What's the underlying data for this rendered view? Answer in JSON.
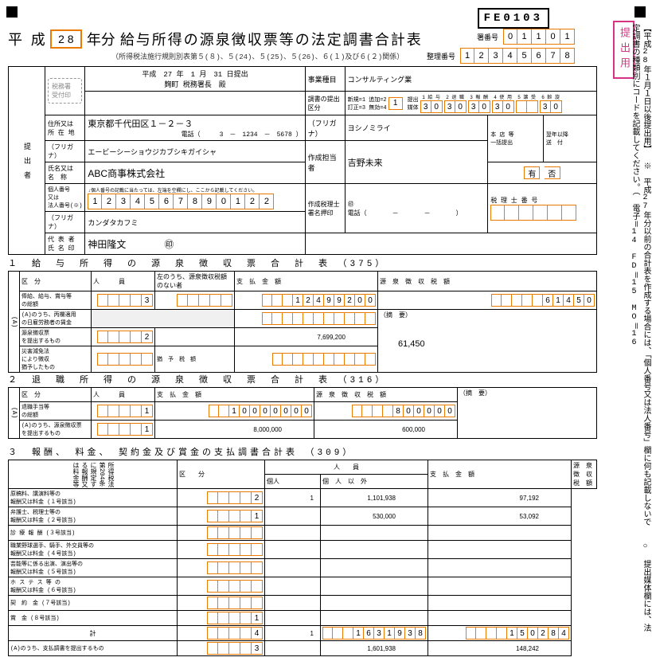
{
  "form_code": "FE0103",
  "era": "平 成",
  "year": "2 8",
  "year_suffix": "年分",
  "main_title": "給与所得の源泉徴収票等の法定調書合計表",
  "subtitle": "（所得税法施行規則別表第５(８)、５(24)、５(25)、５(26)、６(１)及び６(２)関係）",
  "office_no_label": "署番号",
  "office_no": [
    "0",
    "1",
    "1",
    "0",
    "1"
  ],
  "seq_label": "整理番号",
  "seq_no": [
    "1",
    "2",
    "3",
    "4",
    "5",
    "6",
    "7",
    "8"
  ],
  "submit_date": "平成　27 年　1 月　31 日提出",
  "submit_to": "麹町 税務署長　殿",
  "business_label": "事業種目",
  "business": "コンサルティング業",
  "addr_label": "住所又は\n所 在 地",
  "address": "東京都千代田区１－２－３",
  "tel": "電話（　　　3　－　1234　－　5678 ）",
  "submission_label": "調書の提出区分",
  "submission_note": "新規=1 追加=2\n訂正=3 無効=4",
  "submission_box": "1",
  "media_label": "提出\n媒体",
  "media_categories": [
    "1 給 与",
    "2 退 職",
    "3 報 酬",
    "4 使 用",
    "5 譲 受",
    "6 斡 旋"
  ],
  "media_values": [
    [
      "3",
      "0"
    ],
    [
      "3",
      "0"
    ],
    [
      "3",
      "0"
    ],
    [
      "3",
      "0"
    ],
    [
      "",
      ""
    ],
    [
      "3",
      "0"
    ]
  ],
  "furigana_label": "（フリガナ）",
  "company_furi": "エービーシーショウジカブシキガイシャ",
  "company_label": "氏名又は\n名　称",
  "company": "ABC商事株式会社",
  "person_num_label": "個人番号\n又は\n法人番号(※)",
  "person_num_note": "↓個人番号の記載に当たっては、左端を空欄にし、ここから記載してください。",
  "person_num": [
    "1",
    "2",
    "3",
    "4",
    "5",
    "6",
    "7",
    "8",
    "9",
    "0",
    "1",
    "2",
    "2"
  ],
  "rep_furi": "カンダタカフミ",
  "rep_label": "代 表 者\n氏 名 印",
  "rep_name": "神田隆文",
  "creator_furi_label": "（フリガナ）",
  "creator_furi": "ヨシノミライ",
  "creator_label": "作成担当者",
  "creator": "吉野未来",
  "accountant_label": "作成税理士\n署名押印",
  "tel2_label": "電話（　　　　－　　　　－　　　　）",
  "honten_label": "本 店 等\n一括提出",
  "yokunen_label": "翌年以降\n送　付",
  "yes_no": [
    "有",
    "否"
  ],
  "tax_acc_label": "税 理 士 番 号",
  "receipt_stamp": "税務署\n受付印",
  "submitter_col": "提　出　者",
  "submit_badge": "提出用",
  "side_note1": "【平成28年１月１日以後提出用】",
  "side_note2": "　○ 提出媒体欄には、法定調書の種類別にコードを記載してください。（ 電子＝14　FD＝15　MO＝16",
  "side_note3": "※　平成27年分以前の合計表を作成する場合には、「個人番号又は法人番号」欄に何も記載しないで",
  "sec1_title": "１　給　与　所　得　の　源　泉　徴　収　票　合　計　表　（375）",
  "sec1_hdr": [
    "区　分",
    "人　　　員",
    "左のうち、源泉徴収税額のない者",
    "支　払　金　額",
    "源　泉　徴　収　税　額"
  ],
  "sec1_r1_label": "俸給、給与、賞与等\nの総額",
  "sec1_r1_people": "3",
  "sec1_r1_amount": [
    "",
    "",
    "",
    "1",
    "2",
    "4",
    "9",
    "9",
    "2",
    "0",
    "0"
  ],
  "sec1_r1_tax": [
    "",
    "",
    "",
    "",
    "",
    "6",
    "1",
    "4",
    "5",
    "0"
  ],
  "sec1_note1": "(A)のうち、丙欄適用\nの日雇労務者の賃金",
  "sec1_r2_label": "源泉徴収票\nを提出するもの",
  "sec1_r2_people": "2",
  "sec1_r2_amount": "7,699,200",
  "sec1_r2_tax": "61,450",
  "sec1_r3_label": "災害減免法\nにより徴収\n猶予したもの",
  "sec1_r3_tax_label": "猶　予　税　額",
  "sec1_remark": "（摘　要）",
  "sec2_title": "２　退　職　所　得　の　源　泉　徴　収　票　合　計　表　（316）",
  "sec2_hdr": [
    "区　分",
    "人　　　員",
    "支　払　金　額",
    "源　泉　徴　収　税　額"
  ],
  "sec2_r1_label": "退職手当等\nの総額",
  "sec2_r1_people": "1",
  "sec2_r1_amount": [
    "",
    "",
    "1",
    "0",
    "0",
    "0",
    "0",
    "0",
    "0",
    "0"
  ],
  "sec2_r1_tax": [
    "",
    "",
    "",
    "",
    "8",
    "0",
    "0",
    "0",
    "0",
    "0"
  ],
  "sec2_r2_label": "(A)のうち、源泉徴収票\nを提出するもの",
  "sec2_r2_people": "1",
  "sec2_r2_amount": "8,000,000",
  "sec2_r2_tax": "600,000",
  "sec3_title": "３　報酬、　料金、　契約金及び賞金の支払調書合計表　（309）",
  "sec3_hdr": [
    "区　　分",
    "個人",
    "個　人　以　外",
    "支　払　金　額",
    "源　泉　徴　収　税　額"
  ],
  "sec3_rows": [
    {
      "label": "原稿料、講演料等の\n報酬又は料金 (１号該当)",
      "p": "2",
      "np": "1",
      "amt": "1,101,938",
      "tax": "97,192"
    },
    {
      "label": "弁護士、税理士等の\n報酬又は料金 (２号該当)",
      "p": "1",
      "np": "",
      "amt": "530,000",
      "tax": "53,092"
    },
    {
      "label": "診 療 報 酬 (３号該当)",
      "p": "",
      "np": "",
      "amt": "",
      "tax": ""
    },
    {
      "label": "職業野球選手、騎手、外交員等の\n報酬又は料金 (４号該当)",
      "p": "",
      "np": "",
      "amt": "",
      "tax": ""
    },
    {
      "label": "芸能等に係る出演、演出等の\n報酬又は料金 (５号該当)",
      "p": "",
      "np": "",
      "amt": "",
      "tax": ""
    },
    {
      "label": "ホ ス テ ス 等 の\n報酬又は料金 (６号該当)",
      "p": "",
      "np": "",
      "amt": "",
      "tax": ""
    },
    {
      "label": "契　約　金 (７号該当)",
      "p": "",
      "np": "",
      "amt": "",
      "tax": ""
    },
    {
      "label": "賞　金 (８号該当)",
      "p": "1",
      "np": "",
      "amt": "",
      "tax": ""
    }
  ],
  "sec3_total_label": "計",
  "sec3_total_p": "4",
  "sec3_total_np": "1",
  "sec3_total_amt": [
    "",
    "",
    "",
    "1",
    "6",
    "3",
    "1",
    "9",
    "3",
    "8"
  ],
  "sec3_total_tax": [
    "",
    "",
    "",
    "",
    "1",
    "5",
    "0",
    "2",
    "8",
    "4"
  ],
  "sec3_submit_label": "(A)のうち、支払調書を提出するもの",
  "sec3_submit_p": "3",
  "sec3_submit_amt": "1,601,938",
  "sec3_submit_tax": "148,242",
  "sec3_side": "所得税法第204条に規定する報酬又は料金等"
}
